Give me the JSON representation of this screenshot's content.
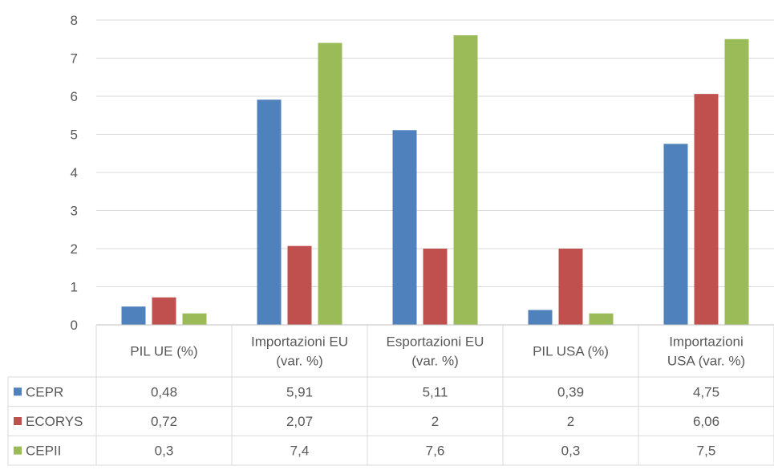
{
  "chart_data": {
    "type": "bar",
    "categories": [
      [
        "PIL UE (%)"
      ],
      [
        "Importazioni EU",
        "(var. %)"
      ],
      [
        "Esportazioni EU",
        "(var. %)"
      ],
      [
        "PIL USA (%)"
      ],
      [
        "Importazioni",
        "USA (var. %)"
      ]
    ],
    "series": [
      {
        "name": "CEPR",
        "color": "#4f81bd",
        "values": [
          0.48,
          5.91,
          5.11,
          0.39,
          4.75
        ],
        "labels": [
          "0,48",
          "5,91",
          "5,11",
          "0,39",
          "4,75"
        ]
      },
      {
        "name": "ECORYS",
        "color": "#c0504d",
        "values": [
          0.72,
          2.07,
          2,
          2,
          6.06
        ],
        "labels": [
          "0,72",
          "2,07",
          "2",
          "2",
          "6,06"
        ]
      },
      {
        "name": "CEPII",
        "color": "#9bbb59",
        "values": [
          0.3,
          7.4,
          7.6,
          0.3,
          7.5
        ],
        "labels": [
          "0,3",
          "7,4",
          "7,6",
          "0,3",
          "7,5"
        ]
      }
    ],
    "ylim": [
      0,
      8
    ],
    "yticks": [
      "0",
      "1",
      "2",
      "3",
      "4",
      "5",
      "6",
      "7",
      "8"
    ],
    "grid": true,
    "legend": "data-table"
  }
}
